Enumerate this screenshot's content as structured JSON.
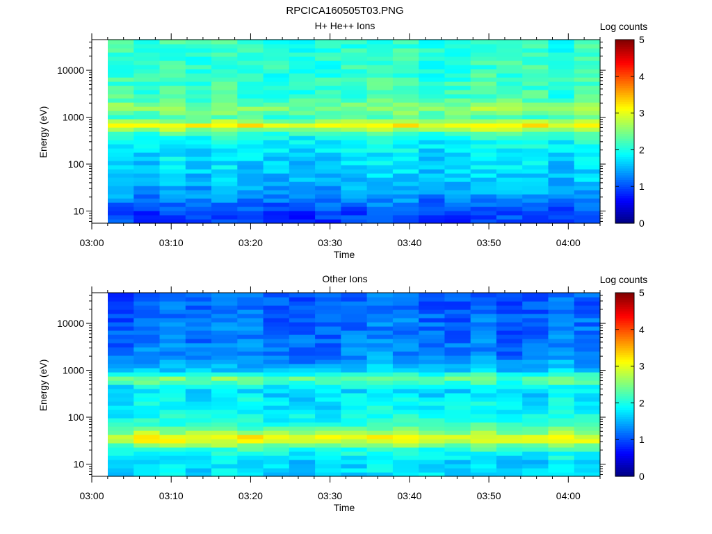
{
  "figure_title": "RPCICA160505T03.PNG",
  "chart_data": [
    {
      "type": "heatmap",
      "title": "H+ He++ Ions",
      "xlabel": "Time",
      "ylabel": "Energy (eV)",
      "x_tick_labels": [
        "03:00",
        "03:10",
        "03:20",
        "03:30",
        "03:40",
        "03:50",
        "04:00"
      ],
      "x_range_minutes": [
        0,
        64
      ],
      "y_scale": "log",
      "y_range": [
        5.5,
        45000
      ],
      "y_tick_labels": [
        "10",
        "100",
        "1000",
        "10000"
      ],
      "y_tick_values": [
        10,
        100,
        1000,
        10000
      ],
      "colorbar": {
        "label": "Log counts",
        "range": [
          0,
          5
        ],
        "tick_labels": [
          "0",
          "1",
          "2",
          "3",
          "4",
          "5"
        ]
      },
      "intensity_profile": [
        {
          "energy_eV": 7,
          "log_counts": 0.9
        },
        {
          "energy_eV": 10,
          "log_counts": 1.0
        },
        {
          "energy_eV": 15,
          "log_counts": 1.2
        },
        {
          "energy_eV": 25,
          "log_counts": 1.4
        },
        {
          "energy_eV": 50,
          "log_counts": 1.6
        },
        {
          "energy_eV": 100,
          "log_counts": 1.7
        },
        {
          "energy_eV": 200,
          "log_counts": 1.8
        },
        {
          "energy_eV": 350,
          "log_counts": 1.9
        },
        {
          "energy_eV": 500,
          "log_counts": 2.3
        },
        {
          "energy_eV": 650,
          "log_counts": 3.3
        },
        {
          "energy_eV": 800,
          "log_counts": 2.7
        },
        {
          "energy_eV": 1000,
          "log_counts": 2.2
        },
        {
          "energy_eV": 1600,
          "log_counts": 2.6
        },
        {
          "energy_eV": 2500,
          "log_counts": 2.2
        },
        {
          "energy_eV": 5000,
          "log_counts": 2.15
        },
        {
          "energy_eV": 10000,
          "log_counts": 2.1
        },
        {
          "energy_eV": 40000,
          "log_counts": 2.1
        }
      ]
    },
    {
      "type": "heatmap",
      "title": "Other Ions",
      "xlabel": "Time",
      "ylabel": "Energy (eV)",
      "x_tick_labels": [
        "03:00",
        "03:10",
        "03:20",
        "03:30",
        "03:40",
        "03:50",
        "04:00"
      ],
      "x_range_minutes": [
        0,
        64
      ],
      "y_scale": "log",
      "y_range": [
        5.5,
        45000
      ],
      "y_tick_labels": [
        "10",
        "100",
        "1000",
        "10000"
      ],
      "y_tick_values": [
        10,
        100,
        1000,
        10000
      ],
      "colorbar": {
        "label": "Log counts",
        "range": [
          0,
          5
        ],
        "tick_labels": [
          "0",
          "1",
          "2",
          "3",
          "4",
          "5"
        ]
      },
      "intensity_profile": [
        {
          "energy_eV": 7,
          "log_counts": 1.7
        },
        {
          "energy_eV": 12,
          "log_counts": 1.7
        },
        {
          "energy_eV": 20,
          "log_counts": 2.0
        },
        {
          "energy_eV": 28,
          "log_counts": 2.6
        },
        {
          "energy_eV": 35,
          "log_counts": 3.2
        },
        {
          "energy_eV": 45,
          "log_counts": 2.7
        },
        {
          "energy_eV": 60,
          "log_counts": 2.2
        },
        {
          "energy_eV": 100,
          "log_counts": 1.9
        },
        {
          "energy_eV": 200,
          "log_counts": 1.8
        },
        {
          "energy_eV": 400,
          "log_counts": 1.7
        },
        {
          "energy_eV": 600,
          "log_counts": 2.3
        },
        {
          "energy_eV": 750,
          "log_counts": 2.5
        },
        {
          "energy_eV": 900,
          "log_counts": 1.6
        },
        {
          "energy_eV": 2000,
          "log_counts": 1.25
        },
        {
          "energy_eV": 10000,
          "log_counts": 1.15
        },
        {
          "energy_eV": 40000,
          "log_counts": 1.05
        }
      ]
    }
  ]
}
